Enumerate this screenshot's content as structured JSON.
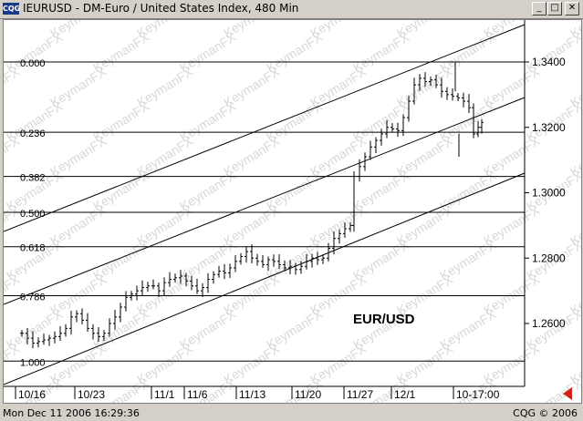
{
  "window": {
    "title": "IEURUSD - DM-Euro / United States Index, 480 Min",
    "app_icon_label": "CQG",
    "minimize_glyph": "_",
    "maximize_glyph": "□",
    "close_glyph": "✕"
  },
  "chart": {
    "watermark_text": "KeymanFX",
    "annotation": "EUR/USD",
    "fib_levels": [
      {
        "label": "0.000",
        "price": 1.34
      },
      {
        "label": "0.236",
        "price": 1.3185
      },
      {
        "label": "0.382",
        "price": 1.305
      },
      {
        "label": "0.500",
        "price": 1.294
      },
      {
        "label": "0.618",
        "price": 1.2835
      },
      {
        "label": "0.786",
        "price": 1.2685
      },
      {
        "label": "1.000",
        "price": 1.2485
      }
    ],
    "price_axis": [
      {
        "label": "1.3400",
        "price": 1.34
      },
      {
        "label": "1.3200",
        "price": 1.32
      },
      {
        "label": "1.3000",
        "price": 1.3
      },
      {
        "label": "1.2800",
        "price": 1.28
      },
      {
        "label": "1.2600",
        "price": 1.26
      }
    ],
    "date_axis": [
      "10/16",
      "10/23",
      "11/1",
      "11/6",
      "11/13",
      "11/20",
      "11/27",
      "12/1",
      "10-17:00"
    ]
  },
  "status": {
    "left": "Mon Dec 11 2006 16:29:36",
    "right": "CQG © 2006"
  },
  "colors": {
    "chrome": "#d4d0c8",
    "chart_bg": "#ffffff",
    "bars": "#000000",
    "watermark": "#d8d8d8",
    "nav_arrow": "#d02020"
  }
}
